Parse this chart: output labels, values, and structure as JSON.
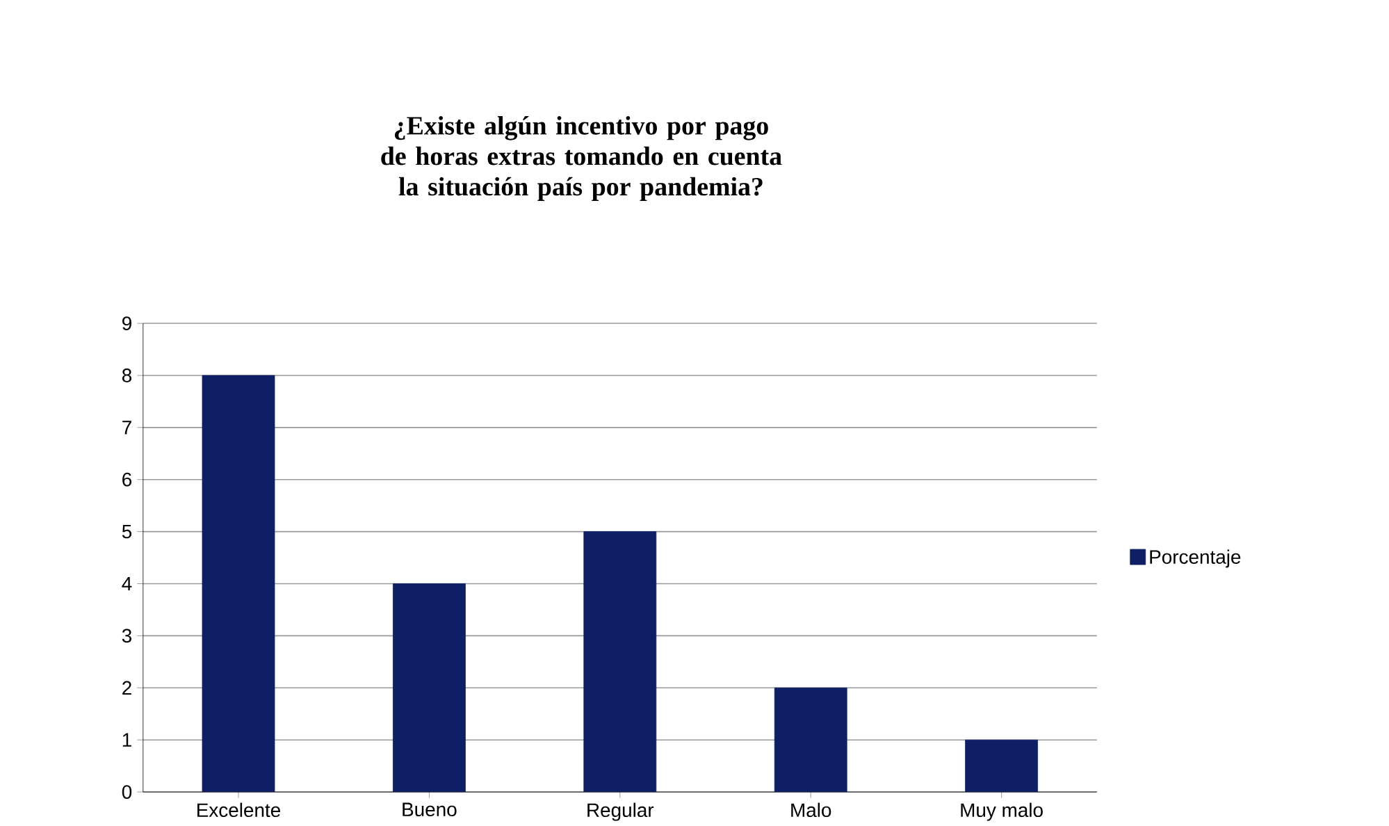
{
  "chart_data": {
    "type": "bar",
    "title": "¿Existe algún incentivo por pago de horas extras tomando en cuenta la situación país por pandemia?",
    "categories": [
      "Excelente",
      "Bueno",
      "Regular",
      "Malo",
      "Muy malo"
    ],
    "series": [
      {
        "name": "Porcentaje",
        "color": "#0f1f66",
        "values": [
          8,
          4,
          5,
          2,
          1
        ]
      }
    ],
    "ylim": [
      0,
      9
    ],
    "yticks": [
      0,
      1,
      2,
      3,
      4,
      5,
      6,
      7,
      8,
      9
    ],
    "grid": "y",
    "legend": "right"
  }
}
